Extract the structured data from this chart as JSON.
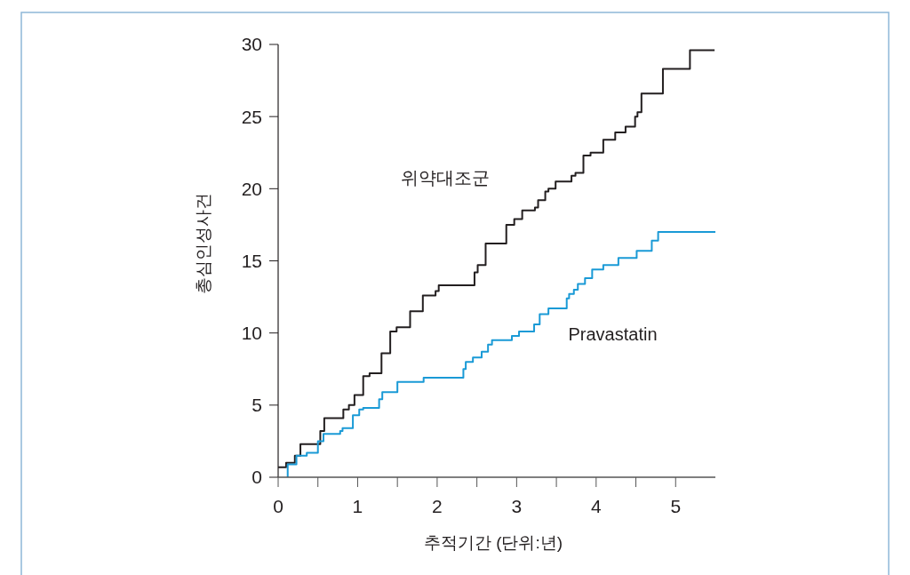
{
  "chart_data": {
    "type": "step",
    "xlabel": "추적기간 (단위:년)",
    "ylabel": "총심인성사건",
    "xlim": [
      0,
      5.5
    ],
    "ylim": [
      0,
      30
    ],
    "xticks": [
      0,
      {
        "value": 0.5,
        "label": null
      },
      1,
      {
        "value": 1.5,
        "label": null
      },
      2,
      {
        "value": 2.5,
        "label": null
      },
      3,
      {
        "value": 3.5,
        "label": null
      },
      4,
      {
        "value": 4.5,
        "label": null
      },
      5
    ],
    "yticks": [
      0,
      5,
      10,
      15,
      20,
      25,
      30
    ],
    "grid": false,
    "legend": false,
    "marker": "none",
    "line_style": "solid",
    "series": [
      {
        "name": "위약대조군",
        "color": "#231f20",
        "x": [
          0,
          0.1,
          0.21,
          0.28,
          0.53,
          0.58,
          0.82,
          0.89,
          0.96,
          1.07,
          1.15,
          1.3,
          1.41,
          1.49,
          1.66,
          1.82,
          1.98,
          2.02,
          2.47,
          2.51,
          2.61,
          2.87,
          2.97,
          3.07,
          3.23,
          3.27,
          3.36,
          3.4,
          3.49,
          3.69,
          3.74,
          3.84,
          3.93,
          4.09,
          4.24,
          4.37,
          4.49,
          4.52,
          4.57,
          4.84,
          5.18,
          5.49
        ],
        "values": [
          0.7,
          1,
          1.5,
          2.3,
          3.2,
          4.1,
          4.7,
          5,
          5.7,
          7,
          7.2,
          8.6,
          10.1,
          10.4,
          11.5,
          12.6,
          12.9,
          13.3,
          14.2,
          14.7,
          16.2,
          17.5,
          17.9,
          18.5,
          18.7,
          19.2,
          19.8,
          20,
          20.5,
          20.9,
          21.1,
          22.3,
          22.5,
          23.4,
          23.9,
          24.3,
          25,
          25.3,
          26.6,
          28.3,
          29.6,
          29.6
        ]
      },
      {
        "name": "Pravastatin",
        "color": "#1a9ad6",
        "x": [
          0.12,
          0.12,
          0.23,
          0.36,
          0.5,
          0.57,
          0.78,
          0.81,
          0.94,
          1.02,
          1.07,
          1.27,
          1.31,
          1.5,
          1.83,
          2.33,
          2.36,
          2.45,
          2.56,
          2.64,
          2.69,
          2.94,
          3.03,
          3.22,
          3.29,
          3.4,
          3.63,
          3.66,
          3.72,
          3.77,
          3.86,
          3.95,
          4.09,
          4.28,
          4.51,
          4.7,
          4.78,
          5.5
        ],
        "values": [
          0,
          0.9,
          1.5,
          1.7,
          2.5,
          3,
          3.2,
          3.4,
          4.3,
          4.7,
          4.8,
          5.4,
          5.9,
          6.6,
          6.9,
          7.5,
          8,
          8.3,
          8.7,
          9.2,
          9.5,
          9.8,
          10.1,
          10.6,
          11.3,
          11.7,
          12.4,
          12.7,
          13,
          13.4,
          13.8,
          14.4,
          14.7,
          15.2,
          15.7,
          16.4,
          17,
          17
        ]
      }
    ]
  }
}
